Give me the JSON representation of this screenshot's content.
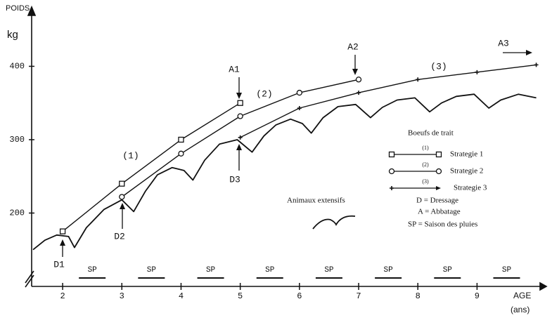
{
  "chart_data": {
    "type": "line",
    "y_label": "POIDS",
    "y_unit": "kg",
    "x_label": "AGE",
    "x_unit": "(ans)",
    "xlim": [
      1.5,
      10.1
    ],
    "xticks": [
      2,
      3,
      4,
      5,
      6,
      7,
      8,
      9
    ],
    "ylim": [
      100,
      470
    ],
    "yticks": [
      200,
      300,
      400
    ],
    "color": "#111111",
    "series": [
      {
        "name": "Strategie 1",
        "marker": "square",
        "x": [
          2,
          3,
          4,
          5
        ],
        "values": [
          175,
          240,
          300,
          350
        ]
      },
      {
        "name": "Strategie 2",
        "marker": "circle",
        "x": [
          3,
          4,
          5,
          6,
          7
        ],
        "values": [
          222,
          281,
          332,
          364,
          382
        ]
      },
      {
        "name": "Strategie 3",
        "marker": "plus",
        "x": [
          5,
          6,
          7,
          8,
          9,
          10
        ],
        "values": [
          303,
          343,
          364,
          382,
          392,
          402
        ]
      },
      {
        "name": "Animaux extensifs",
        "marker": "none",
        "x": [
          1.5,
          1.7,
          1.9,
          2.1,
          2.2,
          2.4,
          2.7,
          3.0,
          3.2,
          3.4,
          3.6,
          3.85,
          4.05,
          4.2,
          4.4,
          4.65,
          4.95,
          5.2,
          5.4,
          5.6,
          5.85,
          6.05,
          6.2,
          6.4,
          6.65,
          6.95,
          7.2,
          7.4,
          7.65,
          7.95,
          8.2,
          8.4,
          8.65,
          8.95,
          9.2,
          9.4,
          9.7,
          10.0
        ],
        "values": [
          150,
          163,
          170,
          168,
          153,
          180,
          205,
          218,
          202,
          230,
          252,
          262,
          258,
          245,
          272,
          294,
          300,
          283,
          305,
          320,
          328,
          322,
          309,
          330,
          345,
          348,
          330,
          344,
          354,
          357,
          338,
          350,
          359,
          362,
          343,
          354,
          362,
          357
        ]
      }
    ],
    "legend_title": "Boeufs de trait",
    "legend_keys": [
      "(1)",
      "(2)",
      "(3)"
    ],
    "legend_notes": [
      "D = Dressage",
      "A = Abbatage",
      "SP = Saison des pluies"
    ],
    "season_label": "SP",
    "seasons": [
      "SP",
      "SP",
      "SP",
      "SP",
      "SP",
      "SP",
      "SP",
      "SP"
    ],
    "annotations": [
      "A1",
      "A2",
      "A3",
      "D1",
      "D2",
      "D3",
      "(1)",
      "(2)",
      "(3)"
    ]
  }
}
